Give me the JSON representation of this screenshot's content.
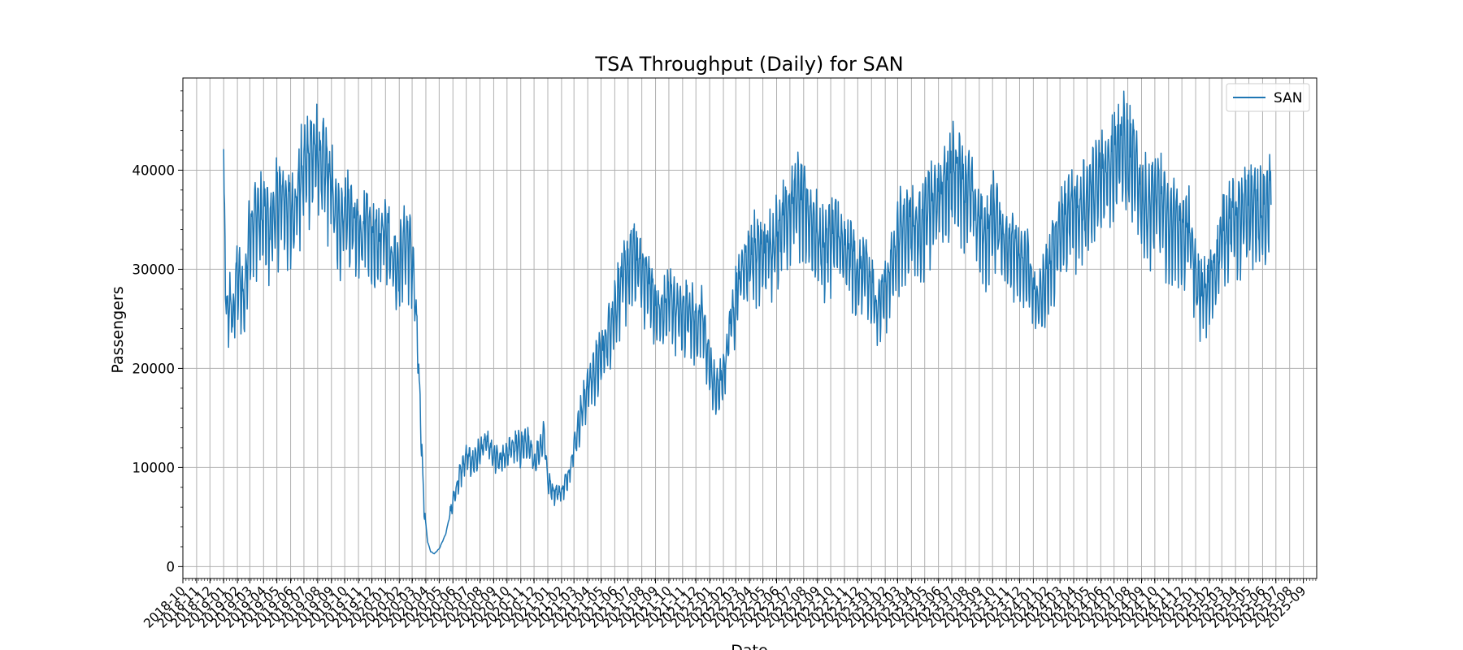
{
  "chart_data": {
    "type": "line",
    "title": "TSA Throughput (Daily) for SAN",
    "xlabel": "Date",
    "ylabel": "Passengers",
    "x_range": [
      "2018-10-01",
      "2025-10-01"
    ],
    "y_range": [
      -1200,
      49300
    ],
    "y_ticks": [
      0,
      10000,
      20000,
      30000,
      40000
    ],
    "y_tick_labels": [
      "0",
      "10000",
      "20000",
      "30000",
      "40000"
    ],
    "x_tick_labels": [
      "2018-10",
      "2018-11",
      "2018-12",
      "2019-01",
      "2019-02",
      "2019-03",
      "2019-04",
      "2019-05",
      "2019-06",
      "2019-07",
      "2019-08",
      "2019-09",
      "2019-10",
      "2019-11",
      "2019-12",
      "2020-01",
      "2020-02",
      "2020-03",
      "2020-04",
      "2020-05",
      "2020-06",
      "2020-07",
      "2020-08",
      "2020-09",
      "2020-10",
      "2020-11",
      "2020-12",
      "2021-01",
      "2021-02",
      "2021-03",
      "2021-04",
      "2021-05",
      "2021-06",
      "2021-07",
      "2021-08",
      "2021-09",
      "2021-10",
      "2021-11",
      "2021-12",
      "2022-01",
      "2022-02",
      "2022-03",
      "2022-04",
      "2022-05",
      "2022-06",
      "2022-07",
      "2022-08",
      "2022-09",
      "2022-10",
      "2022-11",
      "2022-12",
      "2023-01",
      "2023-02",
      "2023-03",
      "2023-04",
      "2023-05",
      "2023-06",
      "2023-07",
      "2023-08",
      "2023-09",
      "2023-10",
      "2023-11",
      "2023-12",
      "2024-01",
      "2024-02",
      "2024-03",
      "2024-04",
      "2024-05",
      "2024-06",
      "2024-07",
      "2024-08",
      "2024-09",
      "2024-10",
      "2024-11",
      "2024-12",
      "2025-01",
      "2025-02",
      "2025-03",
      "2025-04",
      "2025-05",
      "2025-06",
      "2025-07",
      "2025-08",
      "2025-09"
    ],
    "grid": true,
    "legend_position": "top-right",
    "series": [
      {
        "name": "SAN",
        "color": "#1f77b4",
        "points": [
          [
            "2019-01-01",
            38000
          ],
          [
            "2019-01-08",
            24000
          ],
          [
            "2019-01-15",
            27000
          ],
          [
            "2019-01-22",
            24500
          ],
          [
            "2019-02-01",
            30000
          ],
          [
            "2019-02-15",
            26000
          ],
          [
            "2019-03-01",
            34000
          ],
          [
            "2019-03-15",
            35000
          ],
          [
            "2019-04-01",
            35000
          ],
          [
            "2019-04-15",
            34000
          ],
          [
            "2019-05-01",
            36000
          ],
          [
            "2019-05-15",
            37000
          ],
          [
            "2019-06-01",
            35000
          ],
          [
            "2019-06-15",
            37000
          ],
          [
            "2019-07-01",
            40000
          ],
          [
            "2019-07-15",
            41500
          ],
          [
            "2019-08-01",
            41000
          ],
          [
            "2019-08-15",
            40000
          ],
          [
            "2019-09-01",
            38000
          ],
          [
            "2019-09-15",
            34000
          ],
          [
            "2019-10-01",
            36000
          ],
          [
            "2019-10-15",
            35000
          ],
          [
            "2019-11-01",
            33000
          ],
          [
            "2019-11-15",
            34000
          ],
          [
            "2019-12-01",
            33000
          ],
          [
            "2019-12-15",
            32000
          ],
          [
            "2020-01-01",
            35000
          ],
          [
            "2020-01-15",
            31000
          ],
          [
            "2020-02-01",
            30000
          ],
          [
            "2020-02-15",
            33000
          ],
          [
            "2020-03-01",
            31000
          ],
          [
            "2020-03-10",
            25000
          ],
          [
            "2020-03-20",
            15000
          ],
          [
            "2020-03-28",
            6000
          ],
          [
            "2020-04-05",
            2500
          ],
          [
            "2020-04-12",
            1500
          ],
          [
            "2020-04-20",
            1300
          ],
          [
            "2020-05-01",
            1800
          ],
          [
            "2020-05-15",
            3200
          ],
          [
            "2020-06-01",
            6500
          ],
          [
            "2020-06-15",
            9000
          ],
          [
            "2020-07-01",
            11000
          ],
          [
            "2020-07-15",
            10500
          ],
          [
            "2020-08-01",
            11500
          ],
          [
            "2020-08-15",
            12500
          ],
          [
            "2020-09-01",
            11000
          ],
          [
            "2020-09-15",
            10500
          ],
          [
            "2020-10-01",
            11500
          ],
          [
            "2020-10-15",
            12000
          ],
          [
            "2020-11-01",
            12000
          ],
          [
            "2020-11-15",
            12500
          ],
          [
            "2020-12-01",
            10500
          ],
          [
            "2020-12-15",
            12000
          ],
          [
            "2020-12-24",
            13500
          ],
          [
            "2021-01-01",
            8500
          ],
          [
            "2021-01-15",
            7500
          ],
          [
            "2021-02-01",
            7500
          ],
          [
            "2021-02-15",
            9000
          ],
          [
            "2021-03-01",
            12000
          ],
          [
            "2021-03-15",
            15000
          ],
          [
            "2021-04-01",
            18000
          ],
          [
            "2021-04-15",
            19500
          ],
          [
            "2021-05-01",
            21000
          ],
          [
            "2021-05-15",
            23000
          ],
          [
            "2021-06-01",
            26000
          ],
          [
            "2021-06-15",
            28000
          ],
          [
            "2021-07-01",
            30000
          ],
          [
            "2021-07-15",
            31000
          ],
          [
            "2021-08-01",
            29500
          ],
          [
            "2021-08-15",
            28500
          ],
          [
            "2021-09-01",
            26000
          ],
          [
            "2021-09-15",
            25000
          ],
          [
            "2021-10-01",
            27000
          ],
          [
            "2021-10-15",
            26000
          ],
          [
            "2021-11-01",
            25000
          ],
          [
            "2021-11-15",
            26000
          ],
          [
            "2021-12-01",
            24000
          ],
          [
            "2021-12-15",
            25000
          ],
          [
            "2022-01-01",
            20000
          ],
          [
            "2022-01-15",
            17500
          ],
          [
            "2022-02-01",
            19000
          ],
          [
            "2022-02-15",
            24000
          ],
          [
            "2022-03-01",
            27000
          ],
          [
            "2022-03-15",
            30000
          ],
          [
            "2022-04-01",
            31000
          ],
          [
            "2022-04-15",
            31500
          ],
          [
            "2022-05-01",
            31000
          ],
          [
            "2022-05-15",
            32000
          ],
          [
            "2022-06-01",
            33000
          ],
          [
            "2022-06-15",
            35000
          ],
          [
            "2022-07-01",
            36000
          ],
          [
            "2022-07-15",
            37000
          ],
          [
            "2022-08-01",
            36000
          ],
          [
            "2022-08-15",
            35000
          ],
          [
            "2022-09-01",
            33000
          ],
          [
            "2022-09-15",
            32000
          ],
          [
            "2022-10-01",
            33000
          ],
          [
            "2022-10-15",
            33500
          ],
          [
            "2022-11-01",
            31000
          ],
          [
            "2022-11-15",
            31500
          ],
          [
            "2022-12-01",
            29000
          ],
          [
            "2022-12-15",
            30000
          ],
          [
            "2023-01-01",
            27500
          ],
          [
            "2023-01-15",
            26000
          ],
          [
            "2023-02-01",
            28000
          ],
          [
            "2023-02-15",
            30000
          ],
          [
            "2023-03-01",
            33000
          ],
          [
            "2023-03-15",
            34000
          ],
          [
            "2023-04-01",
            34500
          ],
          [
            "2023-04-15",
            33500
          ],
          [
            "2023-05-01",
            35000
          ],
          [
            "2023-05-15",
            36000
          ],
          [
            "2023-06-01",
            37000
          ],
          [
            "2023-06-15",
            38000
          ],
          [
            "2023-07-01",
            39000
          ],
          [
            "2023-07-15",
            40000
          ],
          [
            "2023-08-01",
            38000
          ],
          [
            "2023-08-15",
            37000
          ],
          [
            "2023-09-01",
            34000
          ],
          [
            "2023-09-15",
            33000
          ],
          [
            "2023-10-01",
            35000
          ],
          [
            "2023-10-15",
            34500
          ],
          [
            "2023-11-01",
            32000
          ],
          [
            "2023-11-15",
            33000
          ],
          [
            "2023-12-01",
            30000
          ],
          [
            "2023-12-15",
            30500
          ],
          [
            "2024-01-01",
            27500
          ],
          [
            "2024-01-15",
            26500
          ],
          [
            "2024-02-01",
            29000
          ],
          [
            "2024-02-15",
            31500
          ],
          [
            "2024-03-01",
            34000
          ],
          [
            "2024-03-15",
            35000
          ],
          [
            "2024-04-01",
            36000
          ],
          [
            "2024-04-15",
            35500
          ],
          [
            "2024-05-01",
            37000
          ],
          [
            "2024-05-15",
            37500
          ],
          [
            "2024-06-01",
            38500
          ],
          [
            "2024-06-15",
            40000
          ],
          [
            "2024-07-01",
            41500
          ],
          [
            "2024-07-15",
            42500
          ],
          [
            "2024-08-01",
            41000
          ],
          [
            "2024-08-15",
            40000
          ],
          [
            "2024-09-01",
            37000
          ],
          [
            "2024-09-15",
            36000
          ],
          [
            "2024-10-01",
            37000
          ],
          [
            "2024-10-15",
            36500
          ],
          [
            "2024-11-01",
            34000
          ],
          [
            "2024-11-15",
            35000
          ],
          [
            "2024-12-01",
            33000
          ],
          [
            "2024-12-15",
            34000
          ],
          [
            "2025-01-01",
            29000
          ],
          [
            "2025-01-15",
            27000
          ],
          [
            "2025-02-01",
            28000
          ],
          [
            "2025-02-15",
            30000
          ],
          [
            "2025-03-01",
            33000
          ],
          [
            "2025-03-15",
            34500
          ],
          [
            "2025-04-01",
            35000
          ],
          [
            "2025-04-15",
            34500
          ],
          [
            "2025-05-01",
            36000
          ],
          [
            "2025-05-15",
            36000
          ],
          [
            "2025-06-01",
            35000
          ],
          [
            "2025-06-20",
            36500
          ]
        ]
      }
    ]
  }
}
